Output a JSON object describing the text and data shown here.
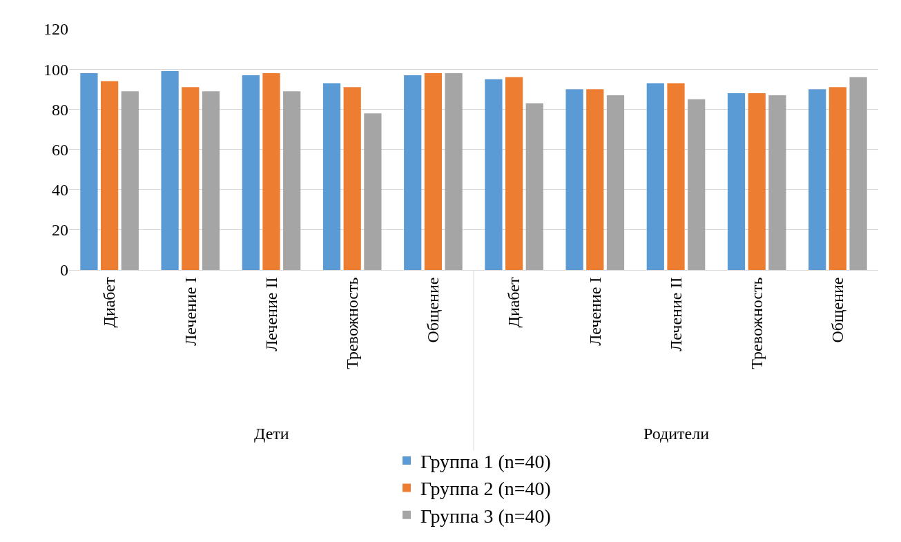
{
  "chart_data": {
    "type": "bar",
    "categories": [
      "Диабет",
      "Лечение I",
      "Лечение II",
      "Тревожность",
      "Общение",
      "Диабет",
      "Лечение I",
      "Лечение II",
      "Тревожность",
      "Общение"
    ],
    "series": [
      {
        "name": "Группа 1 (n=40)",
        "color": "#5b9bd5",
        "values": [
          98,
          99,
          97,
          93,
          97,
          95,
          90,
          93,
          88,
          90
        ]
      },
      {
        "name": "Группа 2 (n=40)",
        "color": "#ed7d31",
        "values": [
          94,
          91,
          98,
          91,
          98,
          96,
          90,
          93,
          88,
          91
        ]
      },
      {
        "name": "Группа 3 (n=40)",
        "color": "#a5a5a5",
        "values": [
          89,
          89,
          89,
          78,
          98,
          83,
          87,
          85,
          87,
          96
        ]
      }
    ],
    "annotations": [
      "Дети",
      "Родители"
    ],
    "ylim": [
      0,
      120
    ],
    "yticks": [
      0,
      20,
      40,
      60,
      80,
      100,
      120
    ],
    "grid": "y",
    "legend": "bottom"
  }
}
